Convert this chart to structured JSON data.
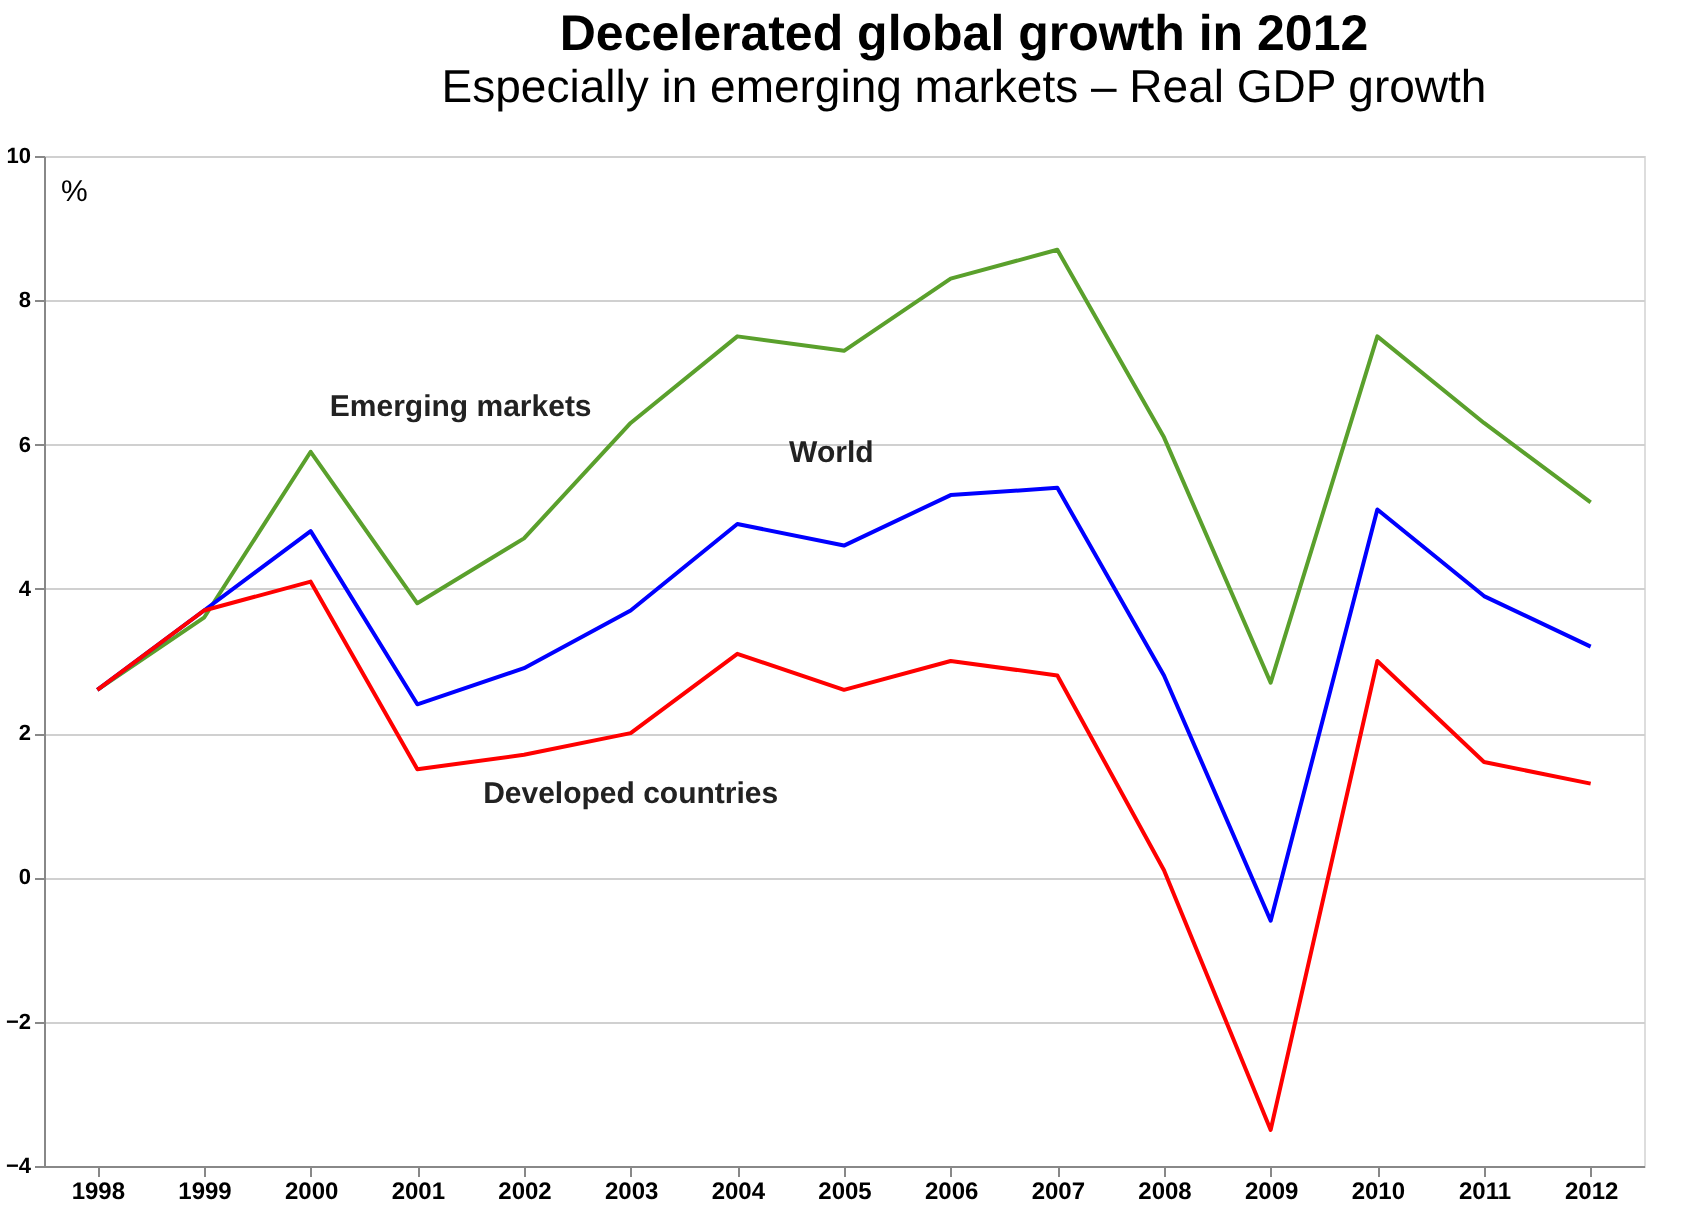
{
  "chart_data": {
    "type": "line",
    "title": "Decelerated global growth in 2012",
    "subtitle": "Especially in emerging markets – Real GDP growth",
    "ylabel": "%",
    "categories": [
      "1998",
      "1999",
      "2000",
      "2001",
      "2002",
      "2003",
      "2004",
      "2005",
      "2006",
      "2007",
      "2008",
      "2009",
      "2010",
      "2011",
      "2012"
    ],
    "series": [
      {
        "name": "Emerging markets",
        "color": "#5aa02c",
        "values": [
          2.6,
          3.6,
          5.9,
          3.8,
          4.7,
          6.3,
          7.5,
          7.3,
          8.3,
          8.7,
          6.1,
          2.7,
          7.5,
          6.3,
          5.2
        ]
      },
      {
        "name": "World",
        "color": "#0000ff",
        "values": [
          2.6,
          3.7,
          4.8,
          2.4,
          2.9,
          3.7,
          4.9,
          4.6,
          5.3,
          5.4,
          2.8,
          -0.6,
          5.1,
          3.9,
          3.2
        ]
      },
      {
        "name": "Developed countries",
        "color": "#ff0000",
        "values": [
          2.6,
          3.7,
          4.1,
          1.5,
          1.7,
          2.0,
          3.1,
          2.6,
          3.0,
          2.8,
          0.1,
          -3.5,
          3.0,
          1.6,
          1.3
        ]
      }
    ],
    "ylim": [
      -4,
      10
    ],
    "yticks": [
      -4,
      -2,
      0,
      2,
      4,
      6,
      8,
      10
    ],
    "grid": "y",
    "legend": false,
    "marker": "none",
    "line_style": "solid"
  }
}
